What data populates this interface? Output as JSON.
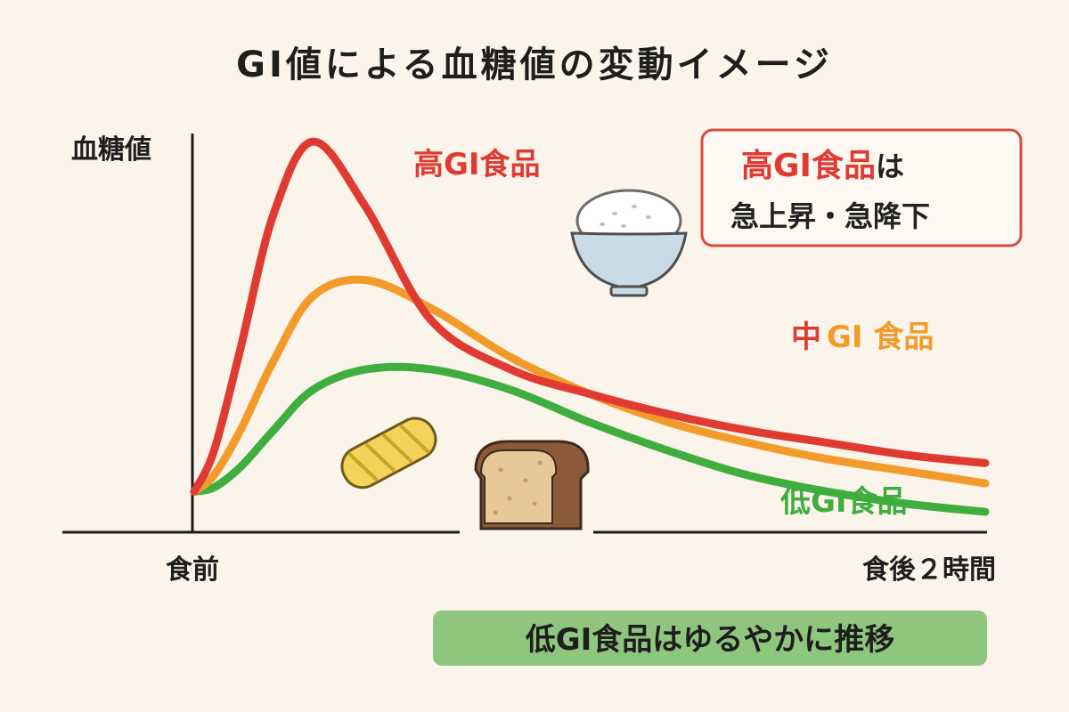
{
  "chart_data": {
    "type": "line",
    "title": "GI値による血糖値の変動イメージ",
    "ylabel": "血糖値",
    "x_start_label": "食前",
    "x_end_label": "食後２時間",
    "x": [
      0,
      0.15,
      0.35,
      0.6,
      0.9,
      1.3,
      1.8,
      2.4,
      3.0,
      3.6,
      4.2,
      4.8,
      5.4,
      6.0
    ],
    "series": [
      {
        "name": "高GI食品",
        "color": "#e03b32",
        "values": [
          0.1,
          0.2,
          0.45,
          0.78,
          0.96,
          0.8,
          0.52,
          0.4,
          0.34,
          0.29,
          0.25,
          0.22,
          0.19,
          0.17
        ]
      },
      {
        "name": "中GI食品",
        "name_parts": [
          "中",
          "GI 食品"
        ],
        "part_colors": [
          "#e03b32",
          "#f29b2a"
        ],
        "color": "#f29b2a",
        "values": [
          0.1,
          0.14,
          0.25,
          0.42,
          0.58,
          0.62,
          0.55,
          0.43,
          0.34,
          0.27,
          0.22,
          0.18,
          0.15,
          0.12
        ]
      },
      {
        "name": "低GI食品",
        "color": "#3fae3f",
        "values": [
          0.1,
          0.11,
          0.16,
          0.25,
          0.35,
          0.4,
          0.4,
          0.35,
          0.27,
          0.2,
          0.14,
          0.1,
          0.07,
          0.05
        ]
      }
    ],
    "ylim": [
      0,
      1.05
    ],
    "grid": false,
    "legend": "inline labels next to each line"
  },
  "callout": {
    "line1_accent": "高GI食品",
    "line1_rest": "は",
    "line2": "急上昇・急降下",
    "border_color": "#d94b40"
  },
  "summary": {
    "text": "低GI食品はゆるやかに推移",
    "bg_color": "#8fc67e"
  },
  "icons": [
    "rice-bowl-icon",
    "pasta-icon",
    "bread-icon"
  ]
}
